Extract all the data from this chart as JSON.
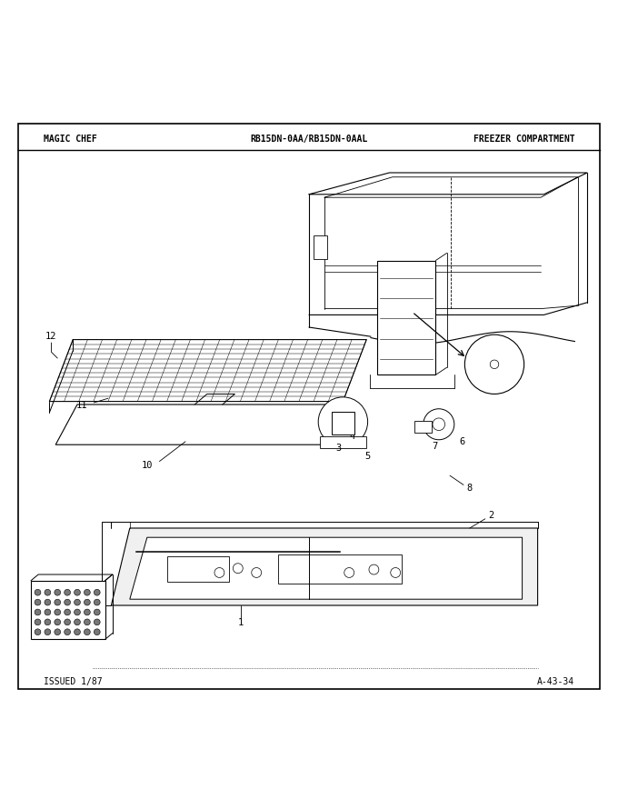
{
  "title_left": "MAGIC CHEF",
  "title_center": "RB15DN-0AA/RB15DN-0AAL",
  "title_right": "FREEZER COMPARTMENT",
  "footer_left": "ISSUED 1/87",
  "footer_right": "A-43-34",
  "bg_color": "#ffffff",
  "text_color": "#000000"
}
